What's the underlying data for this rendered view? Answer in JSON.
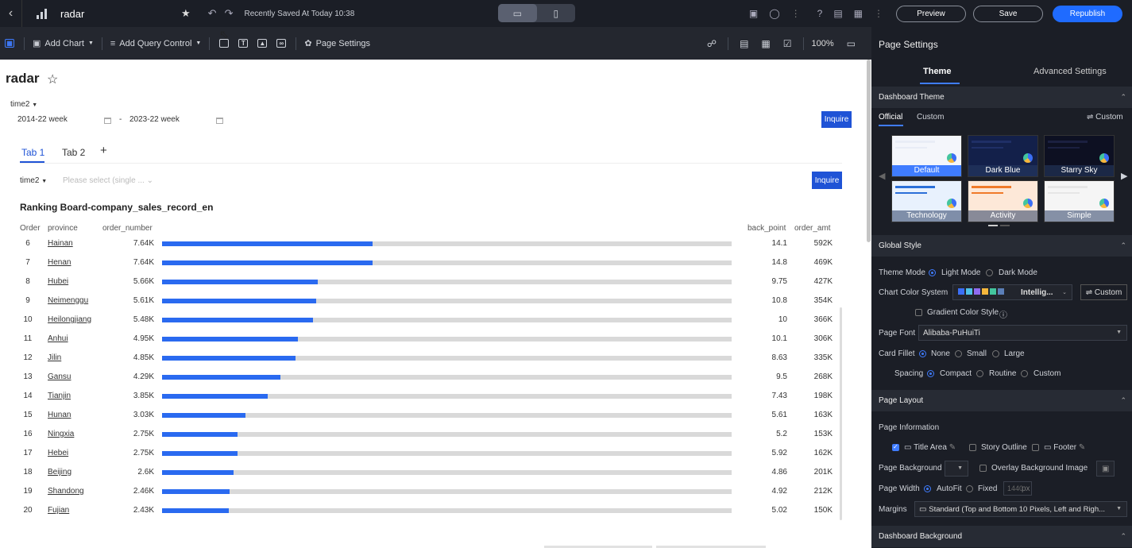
{
  "topbar": {
    "title": "radar",
    "saved_text": "Recently Saved At Today 10:38",
    "preview_label": "Preview",
    "save_label": "Save",
    "republish_label": "Republish"
  },
  "toolbar": {
    "add_chart_label": "Add Chart",
    "add_query_control_label": "Add Query Control",
    "page_settings_label": "Page Settings",
    "zoom_label": "100%"
  },
  "canvas": {
    "page_title": "radar",
    "filter1": {
      "field_label": "time2",
      "start_value": "2014-22 week",
      "end_value": "2023-22 week",
      "separator": "-",
      "inquire_label": "Inquire"
    },
    "tabs": [
      {
        "label": "Tab 1"
      },
      {
        "label": "Tab 2"
      }
    ],
    "tab_add": "+",
    "filter2": {
      "field_label": "time2",
      "placeholder": "Please select (single ...",
      "inquire_label": "Inquire"
    },
    "ranking": {
      "title": "Ranking Board-company_sales_record_en",
      "headers": {
        "order": "Order",
        "province": "province",
        "order_number": "order_number",
        "back_point": "back_point",
        "order_amt": "order_amt"
      }
    }
  },
  "chart_data": {
    "type": "bar",
    "title": "Ranking Board-company_sales_record_en",
    "bar_max": 20.7,
    "rows": [
      {
        "order": "6",
        "province": "Hainan",
        "order_number": "7.64K",
        "order_number_value": 7.64,
        "back_point": "14.1",
        "order_amt": "592K"
      },
      {
        "order": "7",
        "province": "Henan",
        "order_number": "7.64K",
        "order_number_value": 7.64,
        "back_point": "14.8",
        "order_amt": "469K"
      },
      {
        "order": "8",
        "province": "Hubei",
        "order_number": "5.66K",
        "order_number_value": 5.66,
        "back_point": "9.75",
        "order_amt": "427K"
      },
      {
        "order": "9",
        "province": "Neimenggu",
        "order_number": "5.61K",
        "order_number_value": 5.61,
        "back_point": "10.8",
        "order_amt": "354K"
      },
      {
        "order": "10",
        "province": "Heilongjiang",
        "order_number": "5.48K",
        "order_number_value": 5.48,
        "back_point": "10",
        "order_amt": "366K"
      },
      {
        "order": "11",
        "province": "Anhui",
        "order_number": "4.95K",
        "order_number_value": 4.95,
        "back_point": "10.1",
        "order_amt": "306K"
      },
      {
        "order": "12",
        "province": "Jilin",
        "order_number": "4.85K",
        "order_number_value": 4.85,
        "back_point": "8.63",
        "order_amt": "335K"
      },
      {
        "order": "13",
        "province": "Gansu",
        "order_number": "4.29K",
        "order_number_value": 4.29,
        "back_point": "9.5",
        "order_amt": "268K"
      },
      {
        "order": "14",
        "province": "Tianjin",
        "order_number": "3.85K",
        "order_number_value": 3.85,
        "back_point": "7.43",
        "order_amt": "198K"
      },
      {
        "order": "15",
        "province": "Hunan",
        "order_number": "3.03K",
        "order_number_value": 3.03,
        "back_point": "5.61",
        "order_amt": "163K"
      },
      {
        "order": "16",
        "province": "Ningxia",
        "order_number": "2.75K",
        "order_number_value": 2.75,
        "back_point": "5.2",
        "order_amt": "153K"
      },
      {
        "order": "17",
        "province": "Hebei",
        "order_number": "2.75K",
        "order_number_value": 2.75,
        "back_point": "5.92",
        "order_amt": "162K"
      },
      {
        "order": "18",
        "province": "Beijing",
        "order_number": "2.6K",
        "order_number_value": 2.6,
        "back_point": "4.86",
        "order_amt": "201K"
      },
      {
        "order": "19",
        "province": "Shandong",
        "order_number": "2.46K",
        "order_number_value": 2.46,
        "back_point": "4.92",
        "order_amt": "212K"
      },
      {
        "order": "20",
        "province": "Fujian",
        "order_number": "2.43K",
        "order_number_value": 2.43,
        "back_point": "5.02",
        "order_amt": "150K"
      }
    ]
  },
  "panel": {
    "title": "Page Settings",
    "tabs": {
      "theme": "Theme",
      "advanced": "Advanced Settings"
    },
    "dashboard_theme": {
      "section": "Dashboard Theme",
      "official": "Official",
      "custom": "Custom",
      "custom_btn": "Custom",
      "themes": [
        {
          "name": "Default",
          "selected": true,
          "bg": "#f4f6fb",
          "band": "#e9edf6"
        },
        {
          "name": "Dark Blue",
          "selected": false,
          "bg": "#13204a",
          "band": "#1f2f66"
        },
        {
          "name": "Starry Sky",
          "selected": false,
          "bg": "#0d1022",
          "band": "#1b2040"
        },
        {
          "name": "Technology",
          "selected": false,
          "bg": "#e8f1fd",
          "band": "#2b6fd8"
        },
        {
          "name": "Activity",
          "selected": false,
          "bg": "#fde8d8",
          "band": "#f07a2a"
        },
        {
          "name": "Simple",
          "selected": false,
          "bg": "#f5f5f5",
          "band": "#e6e6e6"
        }
      ]
    },
    "global_style": {
      "section": "Global Style",
      "theme_mode_label": "Theme Mode",
      "light_mode": "Light Mode",
      "dark_mode": "Dark Mode",
      "chart_color_label": "Chart Color System",
      "chart_color_value": "Intellig...",
      "chart_color_custom": "Custom",
      "swatch_colors": [
        "#3b6ff5",
        "#4fc1e9",
        "#8f6cf0",
        "#f6b73c",
        "#43c59e",
        "#5b7fb8"
      ],
      "gradient_label": "Gradient Color Style",
      "page_font_label": "Page Font",
      "page_font_value": "Alibaba-PuHuiTi",
      "card_fillet_label": "Card Fillet",
      "fillet_none": "None",
      "fillet_small": "Small",
      "fillet_large": "Large",
      "spacing_label": "Spacing",
      "spacing_compact": "Compact",
      "spacing_routine": "Routine",
      "spacing_custom": "Custom"
    },
    "page_layout": {
      "section": "Page Layout",
      "page_info_label": "Page Information",
      "title_area": "Title Area",
      "story_outline": "Story Outline",
      "footer": "Footer",
      "page_bg_label": "Page Background",
      "overlay_bg": "Overlay Background Image",
      "page_width_label": "Page Width",
      "autofit": "AutoFit",
      "fixed": "Fixed",
      "fixed_value": "1440",
      "px": "px",
      "margins_label": "Margins",
      "margins_value": "Standard (Top and Bottom 10 Pixels, Left and Righ..."
    },
    "dashboard_background": {
      "section": "Dashboard Background"
    }
  }
}
